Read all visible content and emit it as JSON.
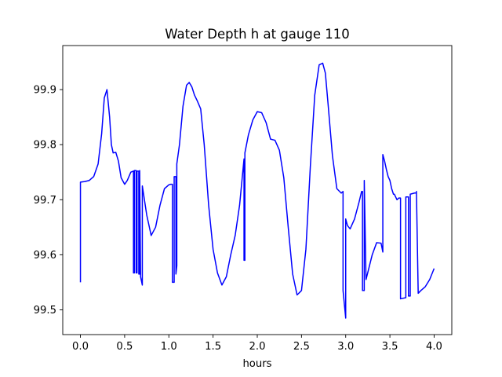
{
  "chart_data": {
    "type": "line",
    "title": "Water Depth h at gauge 110",
    "xlabel": "hours",
    "ylabel": "",
    "xlim": [
      -0.2,
      4.2
    ],
    "ylim": [
      99.455,
      99.98
    ],
    "xticks": [
      0.0,
      0.5,
      1.0,
      1.5,
      2.0,
      2.5,
      3.0,
      3.5,
      4.0
    ],
    "xtick_labels": [
      "0.0",
      "0.5",
      "1.0",
      "1.5",
      "2.0",
      "2.5",
      "3.0",
      "3.5",
      "4.0"
    ],
    "yticks": [
      99.5,
      99.6,
      99.7,
      99.8,
      99.9
    ],
    "ytick_labels": [
      "99.5",
      "99.6",
      "99.7",
      "99.8",
      "99.9"
    ],
    "grid": false,
    "series": [
      {
        "color": "#0000ff",
        "x": [
          0.0,
          0.0,
          0.05,
          0.1,
          0.15,
          0.2,
          0.24,
          0.27,
          0.3,
          0.33,
          0.35,
          0.37,
          0.4,
          0.43,
          0.46,
          0.5,
          0.53,
          0.57,
          0.6,
          0.6,
          0.61,
          0.61,
          0.63,
          0.63,
          0.64,
          0.64,
          0.66,
          0.66,
          0.67,
          0.67,
          0.68,
          0.7,
          0.7,
          0.75,
          0.8,
          0.85,
          0.9,
          0.95,
          1.0,
          1.02,
          1.04,
          1.04,
          1.06,
          1.06,
          1.08,
          1.08,
          1.09,
          1.09,
          1.12,
          1.16,
          1.2,
          1.23,
          1.26,
          1.29,
          1.32,
          1.36,
          1.4,
          1.45,
          1.5,
          1.55,
          1.6,
          1.65,
          1.7,
          1.75,
          1.8,
          1.85,
          1.85,
          1.86,
          1.86,
          1.9,
          1.95,
          2.0,
          2.05,
          2.1,
          2.15,
          2.2,
          2.25,
          2.3,
          2.35,
          2.4,
          2.45,
          2.5,
          2.55,
          2.6,
          2.65,
          2.7,
          2.74,
          2.77,
          2.8,
          2.85,
          2.9,
          2.95,
          2.97,
          2.97,
          3.0,
          3.0,
          3.02,
          3.05,
          3.1,
          3.15,
          3.18,
          3.19,
          3.19,
          3.21,
          3.21,
          3.23,
          3.3,
          3.35,
          3.4,
          3.42,
          3.42,
          3.44,
          3.46,
          3.48,
          3.5,
          3.52,
          3.54,
          3.55,
          3.58,
          3.6,
          3.62,
          3.62,
          3.68,
          3.68,
          3.71,
          3.71,
          3.73,
          3.73,
          3.8,
          3.8,
          3.82,
          3.85,
          3.9,
          3.95,
          4.0
        ],
        "y": [
          99.55,
          99.732,
          99.733,
          99.735,
          99.742,
          99.765,
          99.82,
          99.885,
          99.9,
          99.85,
          99.8,
          99.785,
          99.786,
          99.77,
          99.74,
          99.728,
          99.735,
          99.75,
          99.752,
          99.567,
          99.567,
          99.753,
          99.753,
          99.567,
          99.567,
          99.752,
          99.752,
          99.565,
          99.565,
          99.753,
          99.56,
          99.545,
          99.725,
          99.672,
          99.635,
          99.65,
          99.69,
          99.72,
          99.727,
          99.728,
          99.728,
          99.55,
          99.55,
          99.742,
          99.742,
          99.565,
          99.58,
          99.765,
          99.8,
          99.87,
          99.908,
          99.913,
          99.905,
          99.89,
          99.88,
          99.865,
          99.8,
          99.69,
          99.61,
          99.567,
          99.545,
          99.56,
          99.6,
          99.635,
          99.69,
          99.774,
          99.59,
          99.59,
          99.785,
          99.818,
          99.845,
          99.86,
          99.858,
          99.84,
          99.81,
          99.808,
          99.79,
          99.74,
          99.65,
          99.565,
          99.527,
          99.535,
          99.61,
          99.76,
          99.89,
          99.945,
          99.948,
          99.93,
          99.875,
          99.78,
          99.72,
          99.712,
          99.715,
          99.535,
          99.485,
          99.665,
          99.653,
          99.647,
          99.665,
          99.695,
          99.715,
          99.715,
          99.535,
          99.535,
          99.735,
          99.555,
          99.6,
          99.622,
          99.621,
          99.605,
          99.782,
          99.77,
          99.755,
          99.742,
          99.735,
          99.72,
          99.71,
          99.71,
          99.7,
          99.703,
          99.703,
          99.52,
          99.522,
          99.705,
          99.705,
          99.525,
          99.525,
          99.71,
          99.713,
          99.715,
          99.53,
          99.535,
          99.542,
          99.555,
          99.575
        ]
      }
    ]
  }
}
